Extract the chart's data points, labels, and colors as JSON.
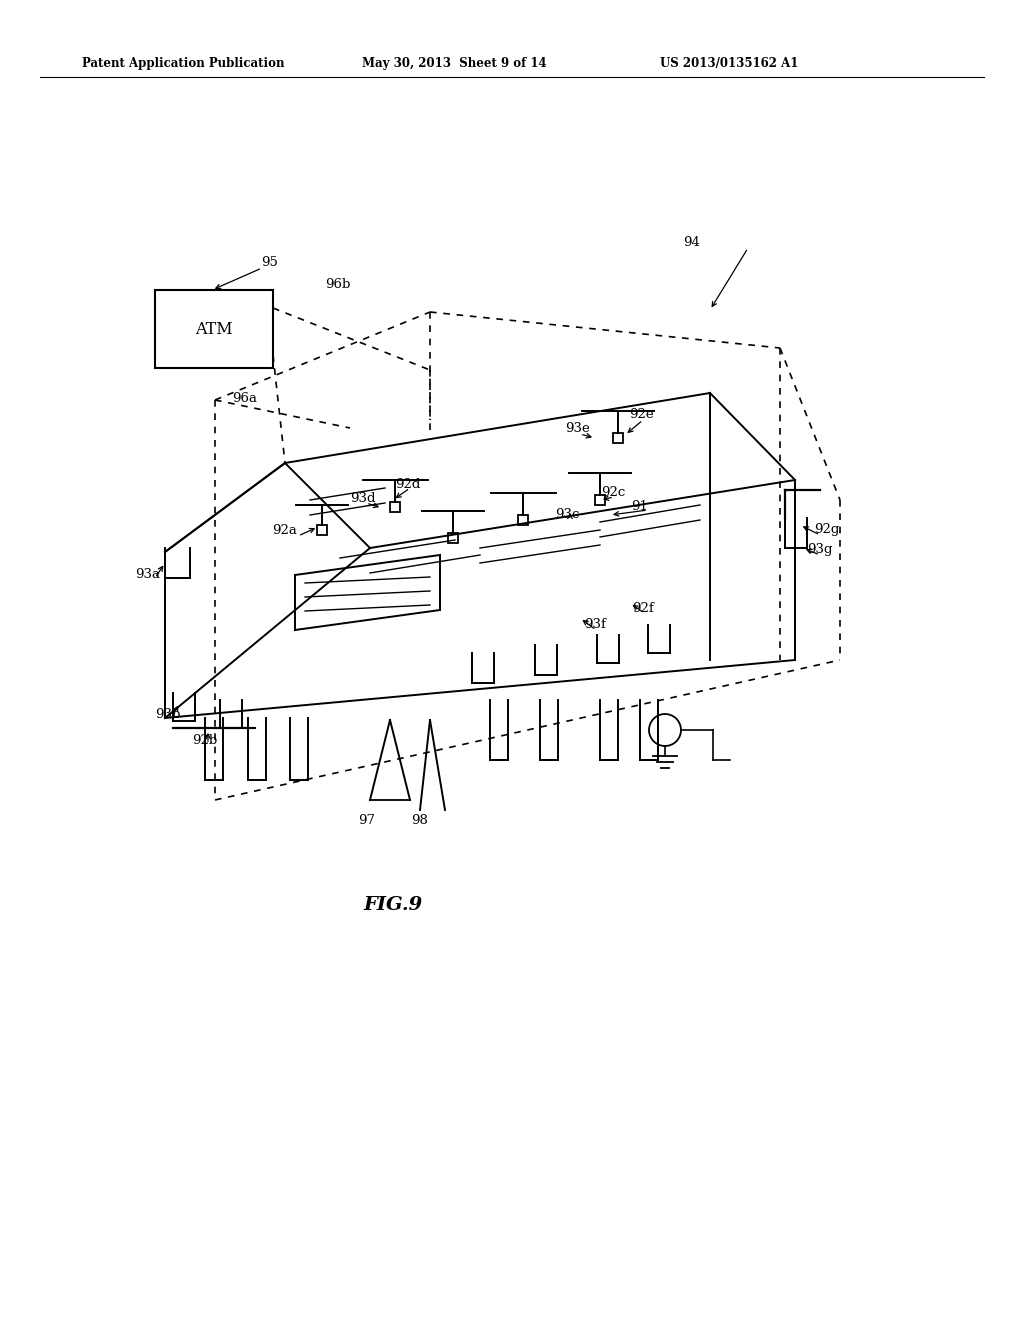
{
  "bg_color": "#ffffff",
  "header_left": "Patent Application Publication",
  "header_mid": "May 30, 2013  Sheet 9 of 14",
  "header_right": "US 2013/0135162 A1",
  "fig_label": "FIG.9",
  "lfs": 9.5
}
